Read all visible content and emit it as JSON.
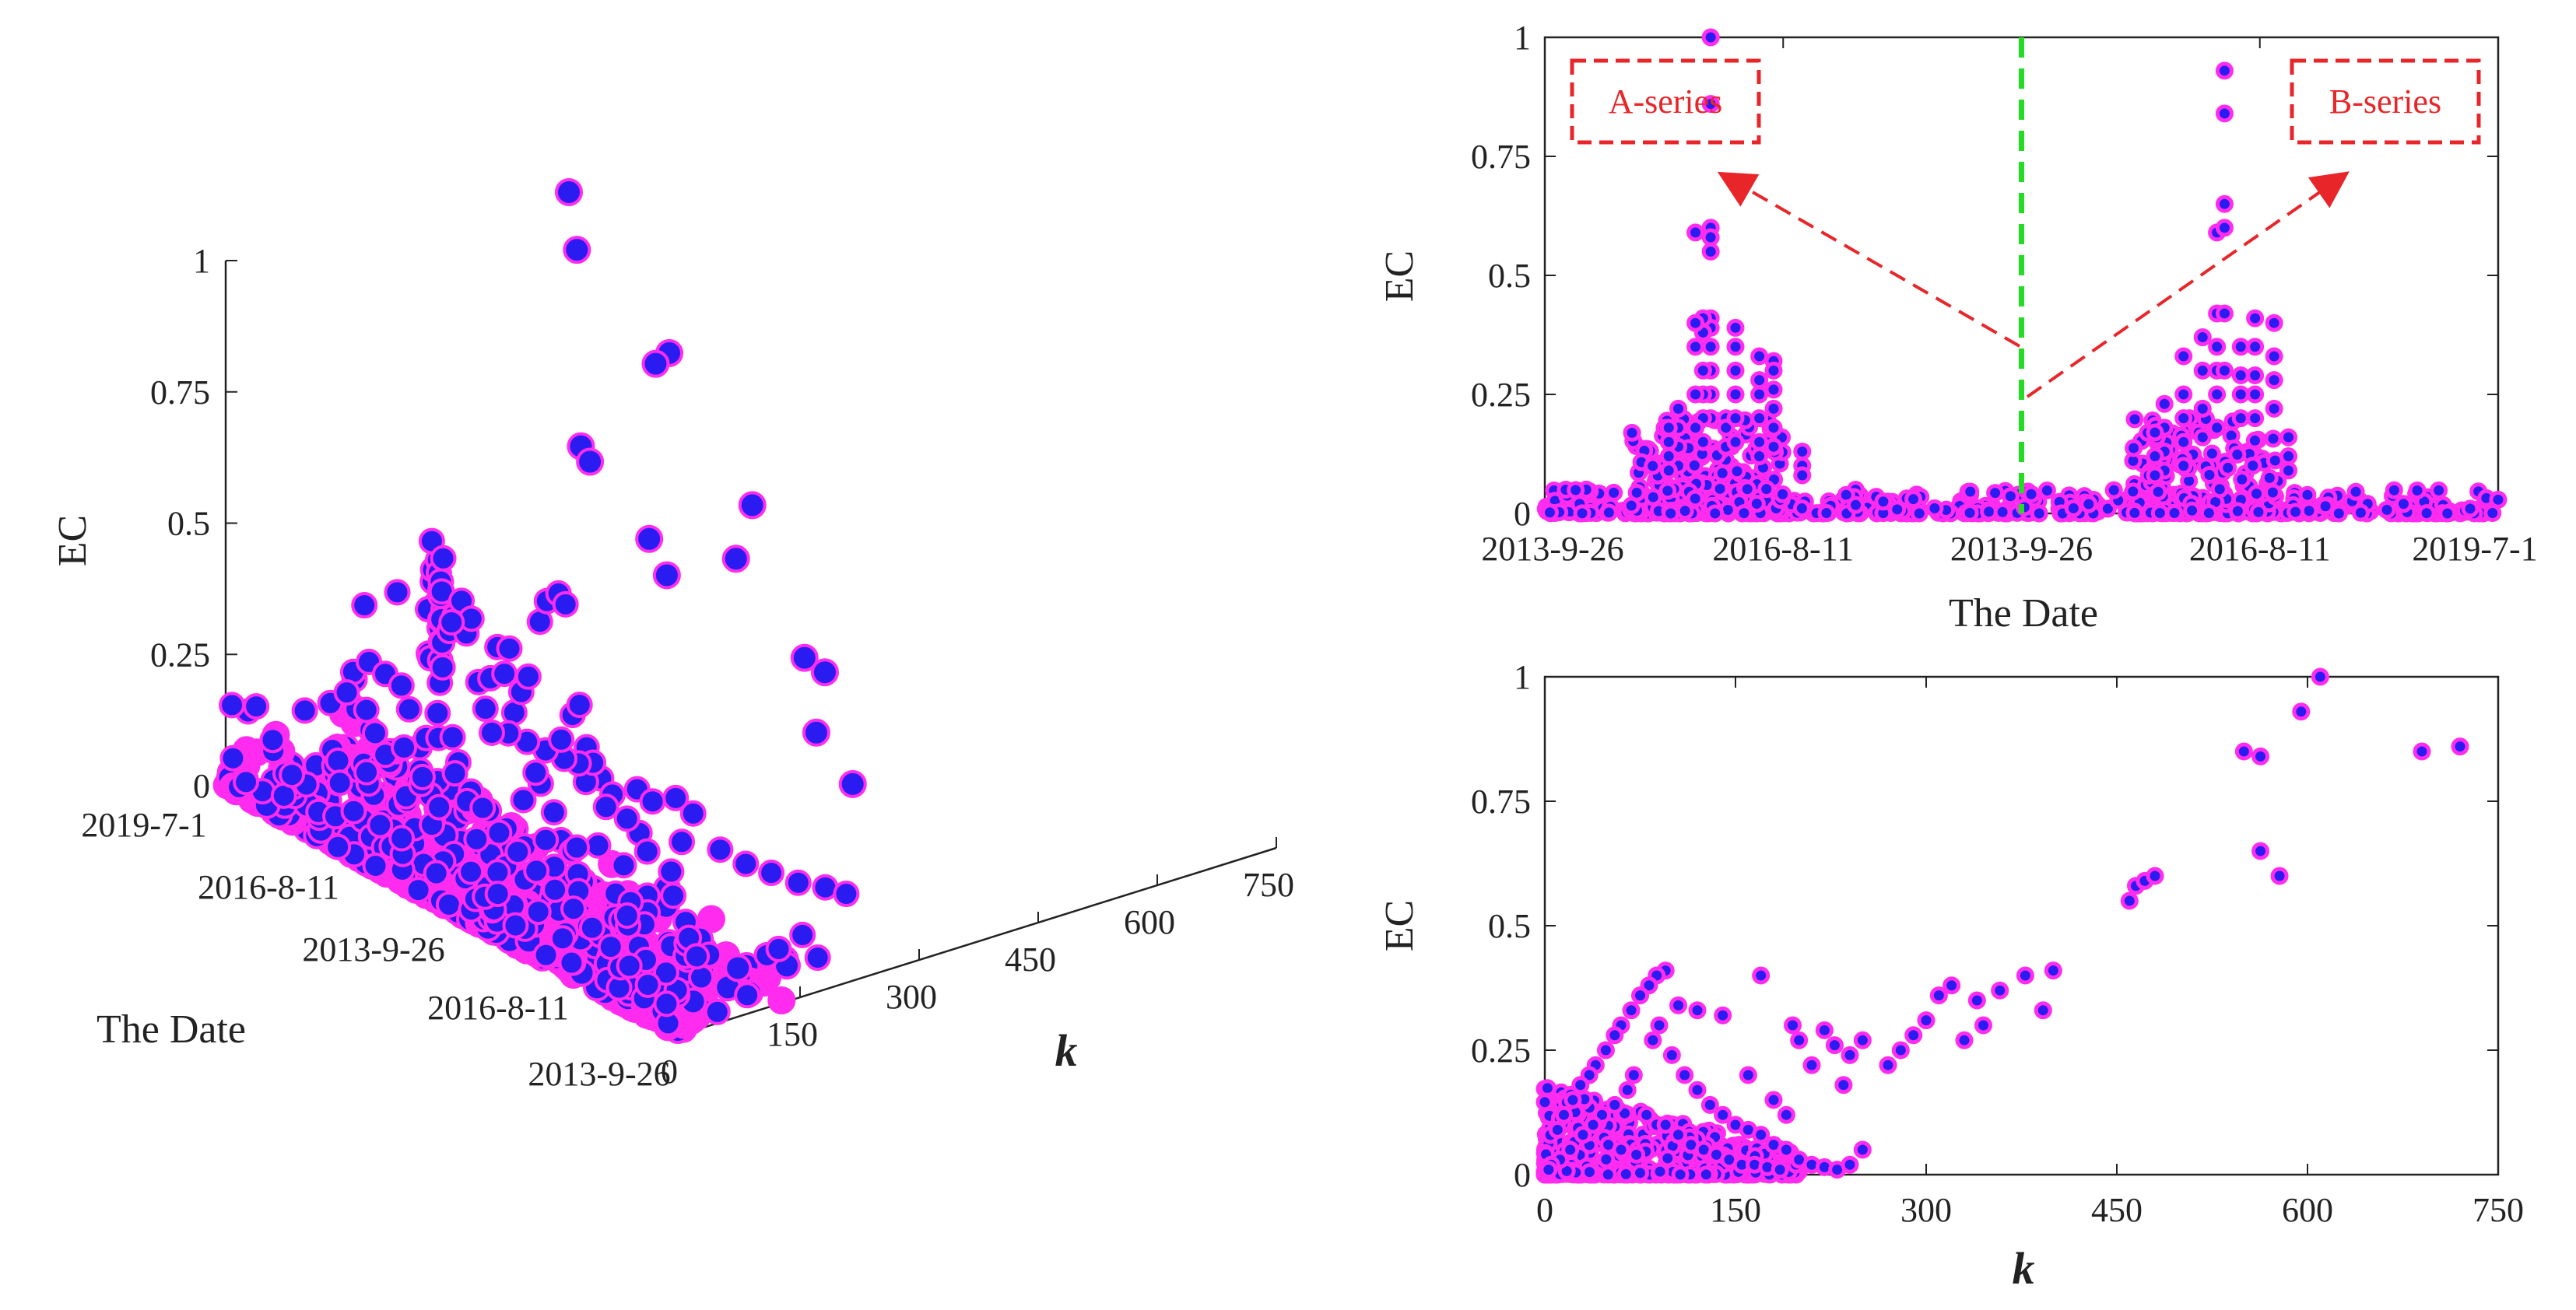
{
  "colors": {
    "marker_fill": "#2a1cf0",
    "marker_edge": "#ff2cf0",
    "divider": "#22dd22",
    "annotation": "#e8262a",
    "axis": "#222222"
  },
  "chart_data": [
    {
      "id": "scatter3d",
      "type": "scatter",
      "projection": "3d",
      "zlabel": "EC",
      "ylabel": "The Date",
      "xlabel": "k",
      "z_ticks": [
        "0",
        "0.25",
        "0.5",
        "0.75",
        "1"
      ],
      "k_ticks": [
        "0",
        "150",
        "300",
        "450",
        "600",
        "750"
      ],
      "date_ticks": [
        "2019-7-1",
        "2016-8-11",
        "2013-9-26",
        "2016-8-11",
        "2013-9-26"
      ],
      "zlim": [
        0,
        1
      ],
      "klim": [
        0,
        750
      ],
      "date_range": [
        0,
        1
      ],
      "points": [
        [
          0.02,
          0.95,
          0.28
        ],
        [
          0.03,
          0.93,
          0.31
        ],
        [
          0.04,
          0.92,
          0.25
        ],
        [
          0.05,
          0.91,
          0.34
        ],
        [
          0.06,
          0.9,
          0.29
        ],
        [
          0.05,
          0.88,
          0.38
        ],
        [
          0.07,
          0.87,
          0.33
        ],
        [
          0.08,
          0.86,
          0.3
        ],
        [
          0.06,
          0.84,
          0.26
        ],
        [
          0.09,
          0.83,
          0.24
        ],
        [
          0.1,
          0.82,
          0.22
        ],
        [
          0.08,
          0.8,
          0.19
        ],
        [
          0.11,
          0.79,
          0.27
        ],
        [
          0.12,
          0.77,
          0.35
        ],
        [
          0.13,
          0.76,
          0.4
        ],
        [
          0.14,
          0.74,
          0.31
        ],
        [
          0.12,
          0.72,
          0.21
        ],
        [
          0.15,
          0.7,
          0.18
        ],
        [
          0.16,
          0.68,
          0.23
        ],
        [
          0.17,
          0.66,
          0.36
        ],
        [
          0.18,
          0.64,
          0.28
        ],
        [
          0.19,
          0.62,
          0.33
        ],
        [
          0.2,
          0.6,
          0.39
        ],
        [
          0.21,
          0.58,
          0.3
        ],
        [
          0.22,
          0.56,
          0.26
        ],
        [
          0.24,
          0.55,
          0.34
        ],
        [
          0.26,
          0.53,
          0.38
        ],
        [
          0.28,
          0.52,
          0.42
        ],
        [
          0.3,
          0.5,
          0.37
        ],
        [
          0.32,
          0.48,
          0.41
        ],
        [
          0.34,
          0.47,
          0.3
        ],
        [
          0.36,
          0.46,
          0.26
        ],
        [
          0.38,
          0.44,
          0.33
        ],
        [
          0.4,
          0.43,
          0.4
        ],
        [
          0.42,
          0.42,
          0.36
        ],
        [
          0.44,
          0.4,
          0.42
        ],
        [
          0.46,
          0.38,
          0.31
        ],
        [
          0.48,
          0.37,
          0.36
        ],
        [
          0.5,
          0.36,
          0.4
        ],
        [
          0.53,
          0.35,
          0.52
        ],
        [
          0.55,
          0.34,
          0.57
        ],
        [
          0.58,
          0.33,
          0.6
        ],
        [
          0.6,
          0.32,
          0.59
        ],
        [
          0.62,
          0.31,
          0.39
        ],
        [
          0.64,
          0.3,
          0.42
        ],
        [
          0.66,
          0.29,
          0.35
        ],
        [
          0.1,
          0.4,
          0.2
        ],
        [
          0.12,
          0.35,
          0.23
        ],
        [
          0.15,
          0.3,
          0.18
        ],
        [
          0.2,
          0.28,
          0.16
        ],
        [
          0.25,
          0.22,
          0.15
        ],
        [
          0.3,
          0.2,
          0.19
        ],
        [
          0.35,
          0.18,
          0.16
        ],
        [
          0.4,
          0.15,
          0.13
        ],
        [
          0.08,
          0.5,
          0.12
        ],
        [
          0.06,
          0.45,
          0.15
        ],
        [
          0.04,
          0.6,
          0.18
        ],
        [
          0.03,
          0.7,
          0.14
        ],
        [
          0.18,
          0.45,
          0.22
        ],
        [
          0.22,
          0.4,
          0.2
        ],
        [
          0.28,
          0.35,
          0.18
        ],
        [
          0.33,
          0.3,
          0.21
        ],
        [
          0.38,
          0.27,
          0.17
        ],
        [
          0.45,
          0.25,
          0.14
        ],
        [
          0.5,
          0.22,
          0.12
        ],
        [
          0.55,
          0.2,
          0.11
        ],
        [
          0.6,
          0.18,
          0.1
        ],
        [
          0.65,
          0.16,
          0.09
        ],
        [
          0.7,
          0.14,
          0.08
        ],
        [
          0.75,
          0.12,
          0.07
        ],
        [
          0.8,
          0.1,
          0.06
        ],
        [
          0.85,
          0.08,
          0.05
        ],
        [
          0.9,
          0.06,
          0.04
        ],
        [
          0.95,
          0.04,
          0.03
        ],
        [
          0.55,
          0.6,
          0.2
        ],
        [
          0.62,
          0.62,
          0.21
        ],
        [
          0.7,
          0.63,
          0.23
        ],
        [
          0.75,
          0.55,
          0.18
        ],
        [
          0.68,
          0.5,
          0.17
        ],
        [
          0.72,
          0.45,
          0.16
        ],
        [
          0.8,
          0.4,
          0.12
        ],
        [
          0.85,
          0.35,
          0.1
        ],
        [
          0.88,
          0.3,
          0.09
        ],
        [
          0.92,
          0.25,
          0.08
        ],
        [
          0.48,
          0.68,
          0.15
        ],
        [
          0.52,
          0.72,
          0.14
        ],
        [
          0.45,
          0.78,
          0.16
        ],
        [
          0.4,
          0.82,
          0.13
        ],
        [
          0.35,
          0.86,
          0.11
        ],
        [
          0.3,
          0.88,
          0.1
        ],
        [
          0.25,
          0.9,
          0.09
        ],
        [
          0.2,
          0.92,
          0.08
        ],
        [
          0.96,
          0.5,
          0.07
        ],
        [
          0.94,
          0.6,
          0.06
        ],
        [
          0.98,
          0.7,
          0.05
        ],
        [
          0.91,
          0.78,
          0.05
        ]
      ],
      "points_note": "[date_fraction, k_fraction_of_visible_spread, EC] — drawn with fixed projection by script",
      "k_points": [
        [
          0.2,
          0.08,
          0.41
        ],
        [
          0.22,
          0.12,
          0.43
        ],
        [
          0.3,
          0.15,
          0.4
        ],
        [
          0.4,
          0.05,
          0.31
        ],
        [
          0.42,
          0.06,
          0.27
        ],
        [
          0.48,
          0.08,
          0.3
        ],
        [
          0.55,
          0.1,
          0.25
        ],
        [
          0.58,
          0.12,
          0.32
        ],
        [
          0.6,
          0.18,
          0.18
        ],
        [
          0.62,
          0.2,
          0.16
        ],
        [
          0.65,
          0.22,
          0.2
        ],
        [
          0.7,
          0.25,
          0.19
        ],
        [
          0.72,
          0.28,
          0.12
        ],
        [
          0.75,
          0.3,
          0.1
        ],
        [
          0.78,
          0.32,
          0.09
        ],
        [
          0.8,
          0.35,
          0.07
        ],
        [
          0.82,
          0.38,
          0.06
        ],
        [
          0.84,
          0.4,
          0.05
        ]
      ],
      "high_points": [
        {
          "date": 0.1,
          "k": 1.0,
          "ec": 1.0
        },
        {
          "date": 0.2,
          "k": 0.86,
          "ec": 0.96
        },
        {
          "date": 0.35,
          "k": 0.95,
          "ec": 0.82
        },
        {
          "date": 0.42,
          "k": 0.78,
          "ec": 0.86
        },
        {
          "date": 0.55,
          "k": 0.92,
          "ec": 0.63
        },
        {
          "date": 0.62,
          "k": 0.74,
          "ec": 0.59
        },
        {
          "date": 0.7,
          "k": 0.86,
          "ec": 0.42
        },
        {
          "date": 0.78,
          "k": 0.8,
          "ec": 0.44
        },
        {
          "date": 0.82,
          "k": 0.7,
          "ec": 0.36
        },
        {
          "date": 0.9,
          "k": 0.7,
          "ec": 0.3
        },
        {
          "date": 0.5,
          "k": 0.62,
          "ec": 0.59
        },
        {
          "date": 0.58,
          "k": 0.55,
          "ec": 0.57
        },
        {
          "date": 0.45,
          "k": 0.45,
          "ec": 0.77
        },
        {
          "date": 0.47,
          "k": 0.45,
          "ec": 0.75
        }
      ]
    },
    {
      "id": "ec-vs-date",
      "type": "scatter",
      "ylabel": "EC",
      "xlabel": "The Date",
      "ylim": [
        0,
        1
      ],
      "y_ticks": [
        "0",
        "0.25",
        "0.5",
        "0.75",
        "1"
      ],
      "x_ticks": [
        "2013-9-26",
        "2016-8-11",
        "2013-9-26",
        "2016-8-11",
        "2019-7-1"
      ],
      "xlim": [
        0,
        1
      ],
      "divider_x": 0.5,
      "annotations": [
        {
          "label": "A-series",
          "target_x": 0.15,
          "target_y": 0.76
        },
        {
          "label": "B-series",
          "target_x": 0.855,
          "target_y": 0.76
        }
      ],
      "series_peaks": [
        {
          "x": 0.174,
          "values": [
            1.0,
            0.86,
            0.6,
            0.58,
            0.55,
            0.41,
            0.39,
            0.35,
            0.3,
            0.25,
            0.2
          ]
        },
        {
          "x": 0.166,
          "values": [
            0.41,
            0.38,
            0.3,
            0.25,
            0.2,
            0.15
          ]
        },
        {
          "x": 0.158,
          "values": [
            0.59,
            0.4,
            0.35,
            0.25,
            0.18
          ]
        },
        {
          "x": 0.19,
          "values": [
            0.2,
            0.18,
            0.14
          ]
        },
        {
          "x": 0.2,
          "values": [
            0.39,
            0.35,
            0.3,
            0.25,
            0.2,
            0.15
          ]
        },
        {
          "x": 0.225,
          "values": [
            0.33,
            0.28,
            0.25,
            0.2,
            0.15,
            0.12
          ]
        },
        {
          "x": 0.24,
          "values": [
            0.32,
            0.3,
            0.26,
            0.22,
            0.18,
            0.14
          ]
        },
        {
          "x": 0.27,
          "values": [
            0.13,
            0.1,
            0.08
          ]
        },
        {
          "x": 0.14,
          "values": [
            0.22,
            0.18,
            0.14,
            0.1
          ]
        },
        {
          "x": 0.13,
          "values": [
            0.18,
            0.15,
            0.12,
            0.09
          ]
        },
        {
          "x": 0.67,
          "values": [
            0.33,
            0.25,
            0.2,
            0.15,
            0.1
          ]
        },
        {
          "x": 0.69,
          "values": [
            0.37,
            0.3,
            0.22,
            0.16
          ]
        },
        {
          "x": 0.705,
          "values": [
            0.59,
            0.42,
            0.35,
            0.3,
            0.25,
            0.18
          ]
        },
        {
          "x": 0.713,
          "values": [
            0.93,
            0.84,
            0.65,
            0.6,
            0.42,
            0.3
          ]
        },
        {
          "x": 0.73,
          "values": [
            0.35,
            0.29,
            0.25,
            0.2
          ]
        },
        {
          "x": 0.745,
          "values": [
            0.41,
            0.35,
            0.29,
            0.25,
            0.2
          ]
        },
        {
          "x": 0.765,
          "values": [
            0.4,
            0.33,
            0.28,
            0.22
          ]
        },
        {
          "x": 0.78,
          "values": [
            0.16,
            0.12,
            0.09
          ]
        },
        {
          "x": 0.65,
          "values": [
            0.23,
            0.18,
            0.13,
            0.09
          ]
        },
        {
          "x": 0.64,
          "values": [
            0.17,
            0.12,
            0.08
          ]
        }
      ],
      "baseline_note": "dense low-EC points along the entire date axis (EC ~0 to 0.05)"
    },
    {
      "id": "ec-vs-k",
      "type": "scatter",
      "ylabel": "EC",
      "xlabel": "k",
      "xlim": [
        0,
        750
      ],
      "ylim": [
        0,
        1
      ],
      "x_ticks": [
        "0",
        "150",
        "300",
        "450",
        "600",
        "750"
      ],
      "y_ticks": [
        "0",
        "0.25",
        "0.5",
        "0.75",
        "1"
      ],
      "points": [
        [
          610,
          1.0
        ],
        [
          595,
          0.93
        ],
        [
          550,
          0.85
        ],
        [
          563,
          0.84
        ],
        [
          690,
          0.85
        ],
        [
          720,
          0.86
        ],
        [
          563,
          0.65
        ],
        [
          578,
          0.6
        ],
        [
          460,
          0.55
        ],
        [
          465,
          0.58
        ],
        [
          472,
          0.59
        ],
        [
          480,
          0.6
        ],
        [
          400,
          0.41
        ],
        [
          378,
          0.4
        ],
        [
          358,
          0.37
        ],
        [
          340,
          0.35
        ],
        [
          320,
          0.38
        ],
        [
          310,
          0.36
        ],
        [
          300,
          0.31
        ],
        [
          290,
          0.28
        ],
        [
          280,
          0.25
        ],
        [
          270,
          0.22
        ],
        [
          392,
          0.33
        ],
        [
          345,
          0.3
        ],
        [
          330,
          0.27
        ],
        [
          250,
          0.27
        ],
        [
          240,
          0.24
        ],
        [
          235,
          0.18
        ],
        [
          228,
          0.26
        ],
        [
          220,
          0.29
        ],
        [
          210,
          0.22
        ],
        [
          200,
          0.27
        ],
        [
          195,
          0.3
        ],
        [
          170,
          0.4
        ],
        [
          160,
          0.2
        ],
        [
          180,
          0.15
        ],
        [
          190,
          0.12
        ],
        [
          140,
          0.32
        ],
        [
          120,
          0.33
        ],
        [
          105,
          0.34
        ],
        [
          95,
          0.41
        ],
        [
          88,
          0.4
        ],
        [
          82,
          0.38
        ],
        [
          75,
          0.36
        ],
        [
          68,
          0.33
        ],
        [
          60,
          0.3
        ],
        [
          55,
          0.28
        ],
        [
          48,
          0.25
        ],
        [
          40,
          0.22
        ],
        [
          35,
          0.2
        ],
        [
          28,
          0.18
        ],
        [
          22,
          0.15
        ],
        [
          15,
          0.12
        ],
        [
          10,
          0.09
        ],
        [
          90,
          0.3
        ],
        [
          85,
          0.27
        ],
        [
          100,
          0.24
        ],
        [
          110,
          0.2
        ],
        [
          120,
          0.17
        ],
        [
          130,
          0.14
        ],
        [
          140,
          0.12
        ],
        [
          150,
          0.1
        ],
        [
          160,
          0.09
        ],
        [
          170,
          0.08
        ],
        [
          180,
          0.06
        ],
        [
          190,
          0.05
        ],
        [
          200,
          0.03
        ],
        [
          210,
          0.02
        ],
        [
          220,
          0.015
        ],
        [
          230,
          0.01
        ],
        [
          240,
          0.02
        ],
        [
          250,
          0.05
        ],
        [
          70,
          0.2
        ],
        [
          65,
          0.17
        ],
        [
          55,
          0.14
        ],
        [
          45,
          0.12
        ],
        [
          38,
          0.1
        ],
        [
          30,
          0.08
        ],
        [
          20,
          0.05
        ],
        [
          12,
          0.03
        ],
        [
          5,
          0.02
        ],
        [
          3,
          0.01
        ],
        [
          80,
          0.12
        ],
        [
          95,
          0.1
        ],
        [
          105,
          0.08
        ],
        [
          115,
          0.06
        ],
        [
          125,
          0.05
        ],
        [
          135,
          0.04
        ],
        [
          145,
          0.03
        ],
        [
          155,
          0.02
        ],
        [
          165,
          0.02
        ],
        [
          175,
          0.015
        ],
        [
          185,
          0.01
        ],
        [
          50,
          0.06
        ],
        [
          60,
          0.05
        ],
        [
          72,
          0.04
        ]
      ]
    }
  ]
}
